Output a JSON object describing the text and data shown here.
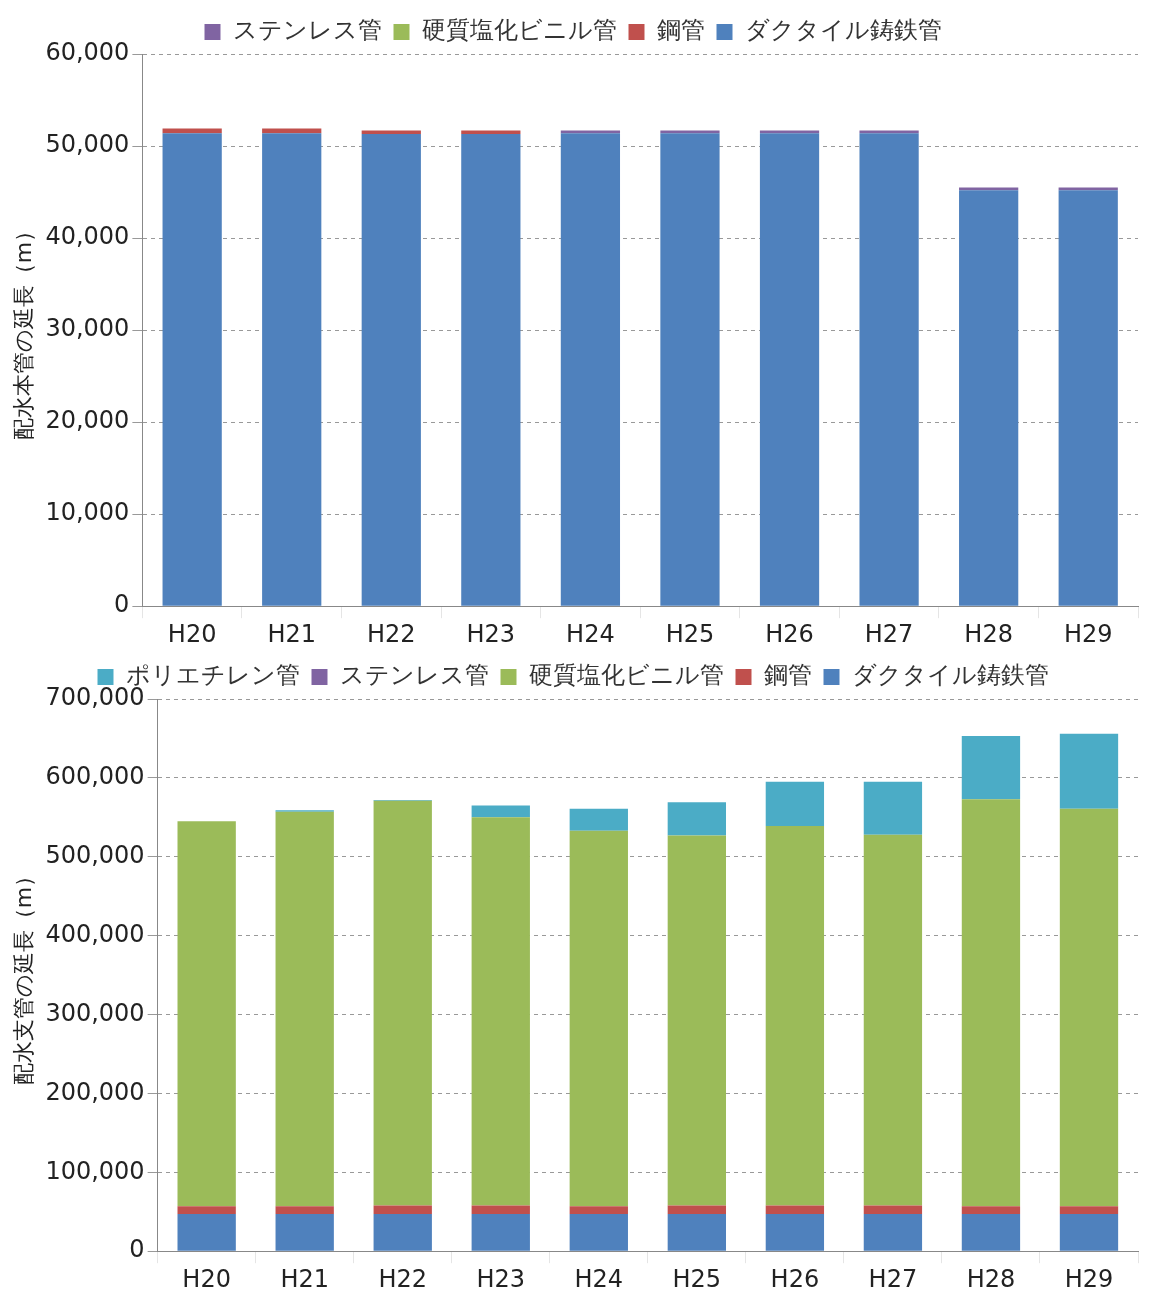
{
  "chart_data": [
    {
      "type": "bar",
      "stacked": true,
      "ylabel": "配水本管の延長（m）",
      "categories": [
        "H20",
        "H21",
        "H22",
        "H23",
        "H24",
        "H25",
        "H26",
        "H27",
        "H28",
        "H29"
      ],
      "ylim": [
        0,
        60000
      ],
      "yticks": [
        {
          "value": 0,
          "label": "0"
        },
        {
          "value": 10000,
          "label": "10,000"
        },
        {
          "value": 20000,
          "label": "20,000"
        },
        {
          "value": 30000,
          "label": "30,000"
        },
        {
          "value": 40000,
          "label": "40,000"
        },
        {
          "value": 50000,
          "label": "50,000"
        },
        {
          "value": 60000,
          "label": "60,000"
        }
      ],
      "grid": "y",
      "legend": "top",
      "series": [
        {
          "name": "ダクタイル鋳鉄管",
          "color": "#4f81bd",
          "values": [
            51400,
            51400,
            51300,
            51300,
            51400,
            51400,
            51400,
            51400,
            45200,
            45200
          ]
        },
        {
          "name": "鋼管",
          "color": "#c0504d",
          "values": [
            500,
            500,
            400,
            400,
            0,
            0,
            0,
            0,
            0,
            0
          ]
        },
        {
          "name": "硬質塩化ビニル管",
          "color": "#9bbb59",
          "values": [
            0,
            0,
            0,
            0,
            0,
            0,
            0,
            0,
            0,
            0
          ]
        },
        {
          "name": "ステンレス管",
          "color": "#8064a2",
          "values": [
            0,
            0,
            0,
            0,
            300,
            300,
            300,
            300,
            300,
            300
          ]
        }
      ]
    },
    {
      "type": "bar",
      "stacked": true,
      "ylabel": "配水支管の延長（m）",
      "categories": [
        "H20",
        "H21",
        "H22",
        "H23",
        "H24",
        "H25",
        "H26",
        "H27",
        "H28",
        "H29"
      ],
      "ylim": [
        0,
        700000
      ],
      "yticks": [
        {
          "value": 0,
          "label": "0"
        },
        {
          "value": 100000,
          "label": "100,000"
        },
        {
          "value": 200000,
          "label": "200,000"
        },
        {
          "value": 300000,
          "label": "300,000"
        },
        {
          "value": 400000,
          "label": "400,000"
        },
        {
          "value": 500000,
          "label": "500,000"
        },
        {
          "value": 600000,
          "label": "600,000"
        },
        {
          "value": 700000,
          "label": "700,000"
        }
      ],
      "grid": "y",
      "legend": "top",
      "series": [
        {
          "name": "ダクタイル鋳鉄管",
          "color": "#4f81bd",
          "values": [
            47000,
            47000,
            47000,
            47000,
            47000,
            47000,
            47000,
            47000,
            47000,
            47000
          ]
        },
        {
          "name": "鋼管",
          "color": "#c0504d",
          "values": [
            10000,
            10000,
            11000,
            11000,
            10000,
            11000,
            11000,
            11000,
            10000,
            10000
          ]
        },
        {
          "name": "硬質塩化ビニル管",
          "color": "#9bbb59",
          "values": [
            488000,
            500000,
            513000,
            492000,
            476000,
            469000,
            481000,
            470000,
            516000,
            504000
          ]
        },
        {
          "name": "ステンレス管",
          "color": "#8064a2",
          "values": [
            0,
            0,
            0,
            0,
            0,
            0,
            0,
            0,
            0,
            0
          ]
        },
        {
          "name": "ポリエチレン管",
          "color": "#4bacc6",
          "values": [
            0,
            2000,
            1000,
            15000,
            28000,
            42000,
            56000,
            67000,
            80000,
            95000
          ]
        }
      ]
    }
  ]
}
